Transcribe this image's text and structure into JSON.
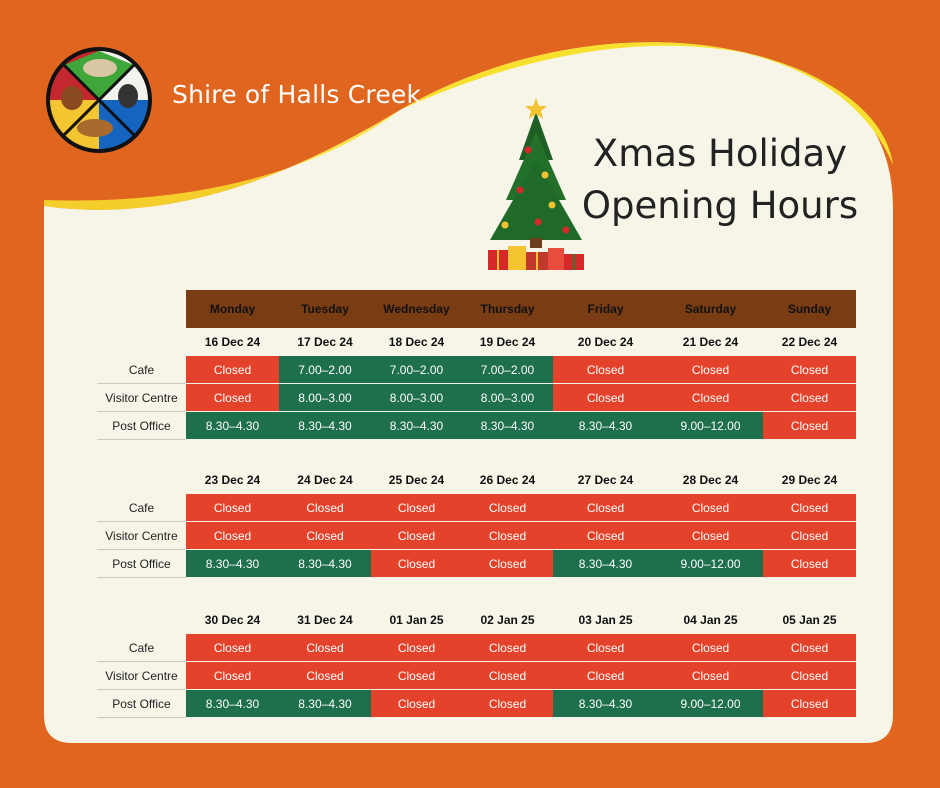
{
  "org_name": "Shire of Halls Creek",
  "title_line1": "Xmas Holiday",
  "title_line2": "Opening Hours",
  "colors": {
    "background": "#e0651f",
    "panel": "#f6f5e8",
    "swoosh": "#f7e12e",
    "header": "#7a3c12",
    "closed": "#e4422a",
    "open": "#1e6f4b"
  },
  "logo_icon": "shire-logo-icon",
  "decoration_icon": "christmas-tree-icon",
  "days": [
    "Monday",
    "Tuesday",
    "Wednesday",
    "Thursday",
    "Friday",
    "Saturday",
    "Sunday"
  ],
  "weeks": [
    {
      "dates": [
        "16 Dec 24",
        "17 Dec 24",
        "18 Dec 24",
        "19 Dec 24",
        "20 Dec 24",
        "21 Dec 24",
        "22 Dec 24"
      ],
      "rows": [
        {
          "label": "Cafe",
          "cells": [
            "Closed",
            "7.00–2.00",
            "7.00–2.00",
            "7.00–2.00",
            "Closed",
            "Closed",
            "Closed"
          ]
        },
        {
          "label": "Visitor Centre",
          "cells": [
            "Closed",
            "8.00–3.00",
            "8.00–3.00",
            "8.00–3.00",
            "Closed",
            "Closed",
            "Closed"
          ]
        },
        {
          "label": "Post Office",
          "cells": [
            "8.30–4.30",
            "8.30–4.30",
            "8.30–4.30",
            "8.30–4.30",
            "8.30–4.30",
            "9.00–12.00",
            "Closed"
          ]
        }
      ]
    },
    {
      "dates": [
        "23 Dec 24",
        "24 Dec 24",
        "25 Dec 24",
        "26 Dec 24",
        "27 Dec 24",
        "28 Dec 24",
        "29 Dec 24"
      ],
      "rows": [
        {
          "label": "Cafe",
          "cells": [
            "Closed",
            "Closed",
            "Closed",
            "Closed",
            "Closed",
            "Closed",
            "Closed"
          ]
        },
        {
          "label": "Visitor Centre",
          "cells": [
            "Closed",
            "Closed",
            "Closed",
            "Closed",
            "Closed",
            "Closed",
            "Closed"
          ]
        },
        {
          "label": "Post Office",
          "cells": [
            "8.30–4.30",
            "8.30–4.30",
            "Closed",
            "Closed",
            "8.30–4.30",
            "9.00–12.00",
            "Closed"
          ]
        }
      ]
    },
    {
      "dates": [
        "30 Dec 24",
        "31 Dec 24",
        "01 Jan 25",
        "02 Jan 25",
        "03 Jan 25",
        "04 Jan 25",
        "05 Jan 25"
      ],
      "rows": [
        {
          "label": "Cafe",
          "cells": [
            "Closed",
            "Closed",
            "Closed",
            "Closed",
            "Closed",
            "Closed",
            "Closed"
          ]
        },
        {
          "label": "Visitor Centre",
          "cells": [
            "Closed",
            "Closed",
            "Closed",
            "Closed",
            "Closed",
            "Closed",
            "Closed"
          ]
        },
        {
          "label": "Post Office",
          "cells": [
            "8.30–4.30",
            "8.30–4.30",
            "Closed",
            "Closed",
            "8.30–4.30",
            "9.00–12.00",
            "Closed"
          ]
        }
      ]
    }
  ]
}
